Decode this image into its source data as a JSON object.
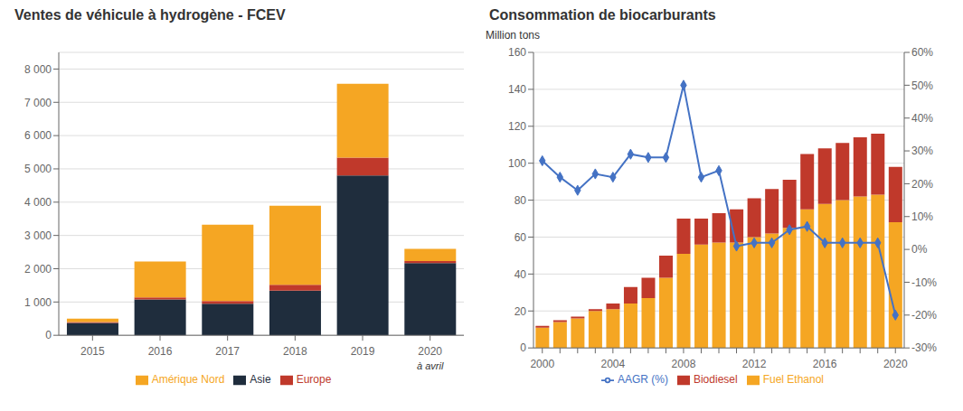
{
  "chart_data": [
    {
      "type": "bar",
      "title": "Ventes de véhicule à hydrogène - FCEV",
      "stacked": true,
      "grid": true,
      "legend": "bottom",
      "categories": [
        "2015",
        "2016",
        "2017",
        "2018",
        "2019",
        "2020"
      ],
      "series": [
        {
          "name": "Asie",
          "color": "#1f2d3d",
          "values": [
            370,
            1080,
            950,
            1340,
            4800,
            2170
          ]
        },
        {
          "name": "Europe",
          "color": "#c0392b",
          "values": [
            30,
            60,
            80,
            180,
            540,
            60
          ]
        },
        {
          "name": "Amérique Nord",
          "color": "#f5a623",
          "values": [
            100,
            1080,
            2290,
            2370,
            2220,
            370
          ]
        }
      ],
      "ylim": [
        0,
        8500
      ],
      "yticks": [
        0,
        {
          "value": 1000,
          "label": "1 000"
        },
        {
          "value": 2000,
          "label": "2 000"
        },
        {
          "value": 3000,
          "label": "3 000"
        },
        {
          "value": 4000,
          "label": "4 000"
        },
        {
          "value": 5000,
          "label": "5 000"
        },
        {
          "value": 6000,
          "label": "6 000"
        },
        {
          "value": 7000,
          "label": "7 000"
        },
        {
          "value": 8000,
          "label": "8 000"
        }
      ],
      "annotations": [
        {
          "text": "à avril",
          "x": "2020"
        }
      ]
    },
    {
      "type": "bar",
      "title": "Consommation de biocarburants",
      "ylabel": "Million tons",
      "stacked": true,
      "grid": true,
      "legend": "bottom",
      "categories": [
        "2000",
        null,
        null,
        null,
        "2004",
        null,
        null,
        null,
        "2008",
        null,
        null,
        null,
        "2012",
        null,
        null,
        null,
        "2016",
        null,
        null,
        null,
        "2020"
      ],
      "series": [
        {
          "name": "Fuel Ethanol",
          "color": "#f5a623",
          "values": [
            11,
            14,
            16,
            20,
            21,
            24,
            27,
            38,
            51,
            56,
            57,
            57,
            60,
            62,
            65,
            75,
            78,
            80,
            82,
            83,
            68
          ]
        },
        {
          "name": "Biodiesel",
          "color": "#c0392b",
          "values": [
            1,
            1,
            1,
            1,
            3,
            9,
            11,
            12,
            19,
            14,
            16,
            18,
            21,
            24,
            26,
            30,
            30,
            31,
            32,
            33,
            30
          ]
        },
        {
          "name": "AAGR (%)",
          "type": "line",
          "axis": "y2",
          "marker": "diamond",
          "color": "#4472c4",
          "values": [
            27,
            22,
            18,
            23,
            22,
            29,
            28,
            28,
            50,
            22,
            24,
            1,
            2,
            2,
            6,
            7,
            2,
            2,
            2,
            2,
            -20
          ]
        }
      ],
      "ylim": [
        0,
        160
      ],
      "yticks": [
        0,
        20,
        40,
        60,
        80,
        100,
        120,
        140,
        160
      ],
      "y2lim": [
        -30,
        60
      ],
      "y2ticks": [
        {
          "value": -30,
          "label": "-30%"
        },
        {
          "value": -20,
          "label": "-20%"
        },
        {
          "value": -10,
          "label": "-10%"
        },
        {
          "value": 0,
          "label": "0%"
        },
        {
          "value": 10,
          "label": "10%"
        },
        {
          "value": 20,
          "label": "20%"
        },
        {
          "value": 30,
          "label": "30%"
        },
        {
          "value": 40,
          "label": "40%"
        },
        {
          "value": 50,
          "label": "50%"
        },
        {
          "value": 60,
          "label": "60%"
        }
      ]
    }
  ]
}
